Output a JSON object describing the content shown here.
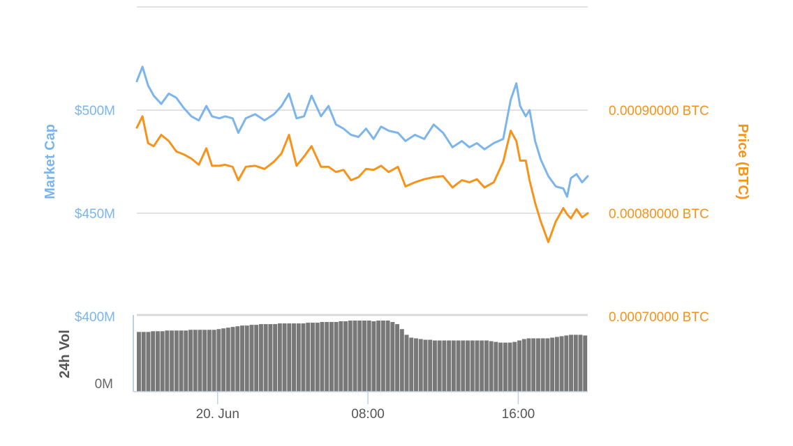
{
  "chart_data": {
    "type": "line",
    "left_axis": {
      "title": "Market Cap",
      "ticks": [
        "$400M",
        "$450M",
        "$500M"
      ],
      "tick_values": [
        400,
        450,
        500
      ],
      "ylim": [
        400,
        550
      ],
      "color": "#7cb5ec"
    },
    "right_axis": {
      "title": "Price (BTC)",
      "ticks": [
        "0.00070000 BTC",
        "0.00080000 BTC",
        "0.00090000 BTC"
      ],
      "tick_values": [
        0.0007,
        0.0008,
        0.0009
      ],
      "ylim": [
        0.0007,
        0.001
      ],
      "color": "#f7931a"
    },
    "x_axis": {
      "ticks": [
        "20. Jun",
        "08:00",
        "16:00"
      ],
      "tick_hours": [
        0,
        8,
        16
      ],
      "xlim": [
        -4.3,
        19.7
      ]
    },
    "series": [
      {
        "axis": "left",
        "color": "#7cb5ec",
        "x": [
          -4.3,
          -4.0,
          -3.7,
          -3.4,
          -3.0,
          -2.6,
          -2.2,
          -1.8,
          -1.4,
          -1.0,
          -0.6,
          -0.3,
          0.1,
          0.4,
          0.8,
          1.1,
          1.5,
          2.0,
          2.5,
          3.0,
          3.4,
          3.8,
          4.2,
          4.6,
          5.0,
          5.5,
          5.9,
          6.3,
          6.7,
          7.1,
          7.5,
          7.9,
          8.3,
          8.7,
          9.1,
          9.6,
          10.0,
          10.5,
          11.0,
          11.5,
          12.0,
          12.5,
          13.0,
          13.4,
          13.8,
          14.2,
          14.7,
          15.2,
          15.6,
          15.9,
          16.1,
          16.4,
          16.6,
          16.9,
          17.2,
          17.6,
          18.0,
          18.4,
          18.6,
          18.8,
          19.1,
          19.4,
          19.7
        ],
        "values": [
          514,
          521,
          512,
          507,
          503,
          508,
          506,
          501,
          497,
          495,
          502,
          497,
          496,
          497,
          496,
          489,
          496,
          498,
          495,
          498,
          502,
          508,
          496,
          497,
          507,
          497,
          502,
          493,
          491,
          488,
          487,
          491,
          486,
          492,
          490,
          489,
          485,
          488,
          486,
          493,
          489,
          482,
          485,
          482,
          484,
          481,
          484,
          486,
          505,
          513,
          502,
          497,
          500,
          485,
          476,
          468,
          463,
          462,
          458,
          467,
          469,
          465,
          468
        ]
      },
      {
        "axis": "right",
        "color": "#f7931a",
        "x": [
          -4.3,
          -4.0,
          -3.7,
          -3.4,
          -3.0,
          -2.6,
          -2.2,
          -1.8,
          -1.4,
          -1.0,
          -0.6,
          -0.3,
          0.1,
          0.4,
          0.8,
          1.1,
          1.5,
          2.0,
          2.5,
          3.0,
          3.4,
          3.8,
          4.2,
          4.6,
          5.0,
          5.5,
          5.9,
          6.3,
          6.7,
          7.1,
          7.5,
          7.9,
          8.3,
          8.7,
          9.1,
          9.6,
          10.0,
          10.5,
          11.0,
          11.5,
          12.0,
          12.5,
          13.0,
          13.4,
          13.8,
          14.2,
          14.7,
          15.2,
          15.6,
          15.9,
          16.1,
          16.4,
          16.6,
          16.9,
          17.2,
          17.6,
          18.0,
          18.4,
          18.6,
          18.8,
          19.1,
          19.4,
          19.7
        ],
        "values": [
          0.000883,
          0.000894,
          0.000868,
          0.000865,
          0.000876,
          0.00087,
          0.00086,
          0.000857,
          0.000853,
          0.000847,
          0.000863,
          0.000846,
          0.000846,
          0.000847,
          0.000845,
          0.000832,
          0.000845,
          0.000846,
          0.000843,
          0.00085,
          0.000858,
          0.000876,
          0.000846,
          0.000855,
          0.000865,
          0.000845,
          0.000845,
          0.00084,
          0.000842,
          0.000832,
          0.000835,
          0.000843,
          0.000842,
          0.000846,
          0.00084,
          0.000845,
          0.000826,
          0.00083,
          0.000833,
          0.000835,
          0.000836,
          0.000825,
          0.000832,
          0.00083,
          0.000833,
          0.000825,
          0.00083,
          0.00085,
          0.00088,
          0.00087,
          0.000851,
          0.000851,
          0.000832,
          0.00081,
          0.000792,
          0.000772,
          0.000792,
          0.000805,
          0.000799,
          0.000795,
          0.000804,
          0.000796,
          0.0008
        ]
      }
    ],
    "volume": {
      "title": "24h Vol",
      "tick": "0M",
      "bar_color": "#787878",
      "values": [
        0.84,
        0.84,
        0.84,
        0.85,
        0.85,
        0.85,
        0.86,
        0.86,
        0.86,
        0.86,
        0.86,
        0.87,
        0.87,
        0.87,
        0.87,
        0.87,
        0.87,
        0.88,
        0.89,
        0.9,
        0.91,
        0.92,
        0.93,
        0.93,
        0.94,
        0.94,
        0.95,
        0.95,
        0.95,
        0.95,
        0.96,
        0.96,
        0.96,
        0.96,
        0.96,
        0.96,
        0.97,
        0.97,
        0.97,
        0.98,
        0.98,
        0.98,
        0.98,
        0.99,
        0.99,
        1.0,
        1.0,
        1.0,
        1.0,
        1.0,
        0.99,
        1.0,
        1.0,
        1.0,
        0.98,
        0.95,
        0.88,
        0.8,
        0.76,
        0.75,
        0.74,
        0.73,
        0.73,
        0.72,
        0.72,
        0.72,
        0.72,
        0.72,
        0.72,
        0.72,
        0.72,
        0.72,
        0.72,
        0.72,
        0.72,
        0.71,
        0.7,
        0.69,
        0.69,
        0.69,
        0.7,
        0.72,
        0.74,
        0.75,
        0.75,
        0.75,
        0.75,
        0.75,
        0.76,
        0.77,
        0.78,
        0.79,
        0.8,
        0.8,
        0.8,
        0.79
      ]
    },
    "grid": true,
    "legend": "none"
  }
}
